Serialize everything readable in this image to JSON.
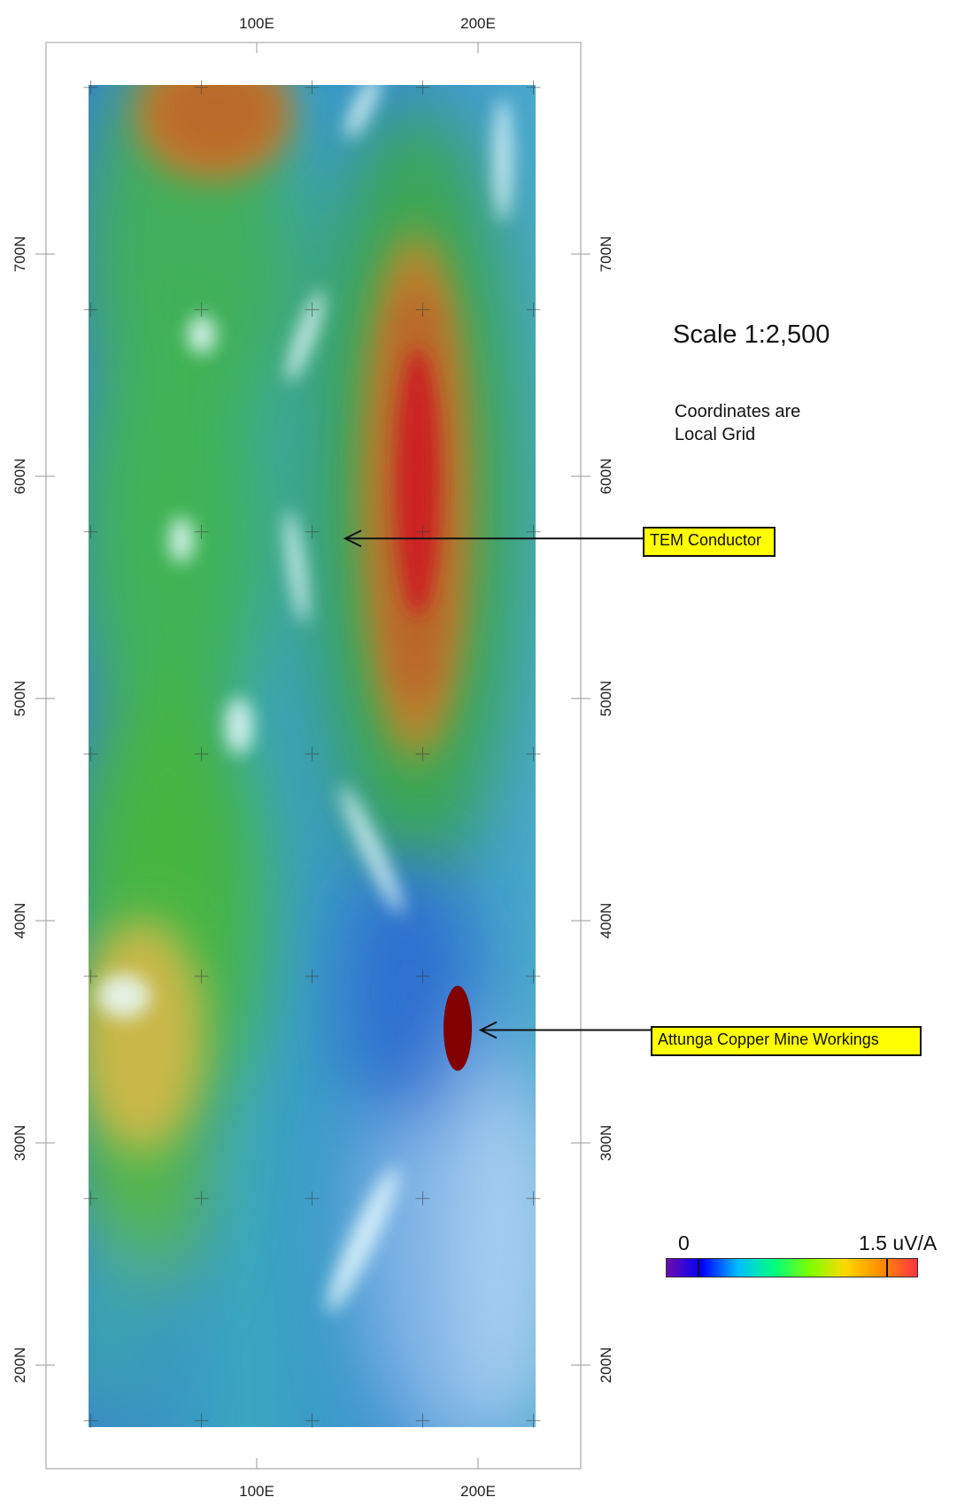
{
  "map": {
    "scale_label": "Scale 1:2,500",
    "coord_note_line1": "Coordinates are",
    "coord_note_line2": "Local Grid",
    "x_ticks": [
      "100E",
      "200E"
    ],
    "y_ticks": [
      "700N",
      "600N",
      "500N",
      "400N",
      "300N",
      "200N"
    ],
    "easting_range": [
      5,
      250
    ],
    "northing_range": [
      175,
      765
    ],
    "annotations": [
      {
        "label": "TEM Conductor",
        "target_easting": 140,
        "target_northing": 572
      },
      {
        "label": "Attunga Copper Mine Workings",
        "target_easting": 190,
        "target_northing": 350
      }
    ],
    "legend": {
      "min_label": "0",
      "max_label": "1.5 uV/A",
      "colors": [
        "#6a0dad",
        "#0000ff",
        "#00bfff",
        "#00ff7f",
        "#7fff00",
        "#ffd700",
        "#ff8c00",
        "#ff3344"
      ]
    },
    "mine_color": "#800000"
  }
}
